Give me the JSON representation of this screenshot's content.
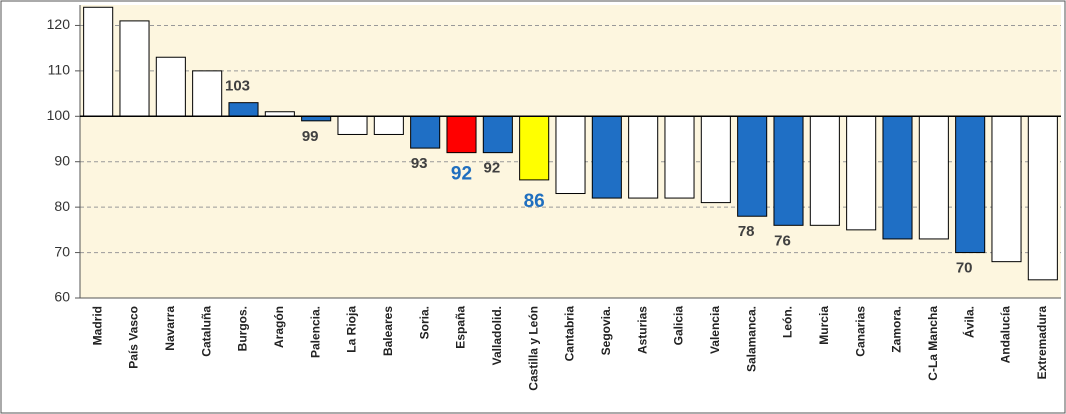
{
  "chart_data": {
    "type": "bar",
    "categories": [
      "Madrid",
      "País Vasco",
      "Navarra",
      "Cataluña",
      "Burgos.",
      "Aragón",
      "Palencia.",
      "La Rioja",
      "Baleares",
      "Soria.",
      "España",
      "Valladolid.",
      "Castilla y León",
      "Cantabria",
      "Segovia.",
      "Asturias",
      "Galicia",
      "Valencia",
      "Salamanca.",
      "León.",
      "Murcia",
      "Canarias",
      "Zamora.",
      "C-La Mancha",
      "Ávila.",
      "Andalucía",
      "Extremadura"
    ],
    "values": [
      124,
      121,
      113,
      110,
      103,
      101,
      99,
      96,
      96,
      93,
      92,
      92,
      86,
      83,
      82,
      82,
      82,
      81,
      78,
      76,
      76,
      75,
      73,
      73,
      70,
      68,
      64
    ],
    "value_labels": [
      null,
      null,
      null,
      null,
      "103",
      null,
      "99",
      null,
      null,
      "93",
      "92",
      "92",
      "86",
      null,
      null,
      null,
      null,
      null,
      "78",
      "76",
      null,
      null,
      null,
      null,
      "70",
      null,
      null
    ],
    "value_label_colors": [
      null,
      null,
      null,
      null,
      "#404040",
      null,
      "#404040",
      null,
      null,
      "#404040",
      "#1f6fbf",
      "#404040",
      "#1f6fbf",
      null,
      null,
      null,
      null,
      null,
      "#404040",
      "#404040",
      null,
      null,
      null,
      null,
      "#404040",
      null,
      null
    ],
    "colors": [
      "#ffffff",
      "#ffffff",
      "#ffffff",
      "#ffffff",
      "#1f6fc5",
      "#ffffff",
      "#1f6fc5",
      "#ffffff",
      "#ffffff",
      "#1f6fc5",
      "#ff0000",
      "#1f6fc5",
      "#ffff00",
      "#ffffff",
      "#1f6fc5",
      "#ffffff",
      "#ffffff",
      "#ffffff",
      "#1f6fc5",
      "#1f6fc5",
      "#ffffff",
      "#ffffff",
      "#1f6fc5",
      "#ffffff",
      "#1f6fc5",
      "#ffffff",
      "#ffffff"
    ],
    "baseline": 100,
    "ylim": [
      60,
      124.5
    ],
    "yticks": [
      60,
      70,
      80,
      90,
      100,
      110,
      120
    ],
    "grid": true
  }
}
